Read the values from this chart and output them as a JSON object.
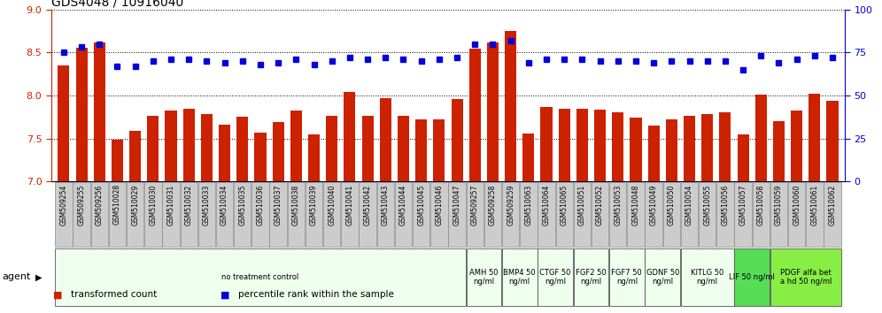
{
  "title": "GDS4048 / 10916040",
  "categories": [
    "GSM509254",
    "GSM509255",
    "GSM509256",
    "GSM510028",
    "GSM510029",
    "GSM510030",
    "GSM510031",
    "GSM510032",
    "GSM510033",
    "GSM510034",
    "GSM510035",
    "GSM510036",
    "GSM510037",
    "GSM510038",
    "GSM510039",
    "GSM510040",
    "GSM510041",
    "GSM510042",
    "GSM510043",
    "GSM510044",
    "GSM510045",
    "GSM510046",
    "GSM510047",
    "GSM509257",
    "GSM509258",
    "GSM509259",
    "GSM510063",
    "GSM510064",
    "GSM510065",
    "GSM510051",
    "GSM510052",
    "GSM510053",
    "GSM510048",
    "GSM510049",
    "GSM510050",
    "GSM510054",
    "GSM510055",
    "GSM510056",
    "GSM510057",
    "GSM510058",
    "GSM510059",
    "GSM510060",
    "GSM510061",
    "GSM510062"
  ],
  "bar_values": [
    8.35,
    8.55,
    8.62,
    7.49,
    7.59,
    7.76,
    7.83,
    7.85,
    7.78,
    7.66,
    7.75,
    7.57,
    7.69,
    7.82,
    7.55,
    7.76,
    8.04,
    7.76,
    7.97,
    7.76,
    7.72,
    7.72,
    7.96,
    8.54,
    8.62,
    8.75,
    7.56,
    7.87,
    7.85,
    7.85,
    7.84,
    7.8,
    7.74,
    7.65,
    7.72,
    7.76,
    7.78,
    7.8,
    7.55,
    8.01,
    7.7,
    7.83,
    8.02,
    7.94
  ],
  "percentile_values": [
    75,
    78,
    80,
    67,
    67,
    70,
    71,
    71,
    70,
    69,
    70,
    68,
    69,
    71,
    68,
    70,
    72,
    71,
    72,
    71,
    70,
    71,
    72,
    80,
    80,
    82,
    69,
    71,
    71,
    71,
    70,
    70,
    70,
    69,
    70,
    70,
    70,
    70,
    65,
    73,
    69,
    71,
    73,
    72
  ],
  "ylim_left": [
    7.0,
    9.0
  ],
  "ylim_right": [
    0,
    100
  ],
  "yticks_left": [
    7.0,
    7.5,
    8.0,
    8.5,
    9.0
  ],
  "yticks_right": [
    0,
    25,
    50,
    75,
    100
  ],
  "bar_color": "#cc2200",
  "dot_color": "#0000dd",
  "bar_bottom": 7.0,
  "agent_groups": [
    {
      "label": "no treatment control",
      "start": 0,
      "end": 22,
      "color": "#eeffee",
      "ncols": 23
    },
    {
      "label": "AMH 50\nng/ml",
      "start": 23,
      "end": 24,
      "color": "#eeffee",
      "ncols": 2
    },
    {
      "label": "BMP4 50\nng/ml",
      "start": 25,
      "end": 26,
      "color": "#eeffee",
      "ncols": 2
    },
    {
      "label": "CTGF 50\nng/ml",
      "start": 27,
      "end": 28,
      "color": "#eeffee",
      "ncols": 2
    },
    {
      "label": "FGF2 50\nng/ml",
      "start": 29,
      "end": 30,
      "color": "#eeffee",
      "ncols": 2
    },
    {
      "label": "FGF7 50\nng/ml",
      "start": 31,
      "end": 32,
      "color": "#eeffee",
      "ncols": 2
    },
    {
      "label": "GDNF 50\nng/ml",
      "start": 33,
      "end": 34,
      "color": "#eeffee",
      "ncols": 2
    },
    {
      "label": "KITLG 50\nng/ml",
      "start": 35,
      "end": 37,
      "color": "#eeffee",
      "ncols": 3
    },
    {
      "label": "LIF 50 ng/ml",
      "start": 38,
      "end": 39,
      "color": "#55dd55",
      "ncols": 2
    },
    {
      "label": "PDGF alfa bet\na hd 50 ng/ml",
      "start": 40,
      "end": 43,
      "color": "#88ee44",
      "ncols": 4
    }
  ]
}
